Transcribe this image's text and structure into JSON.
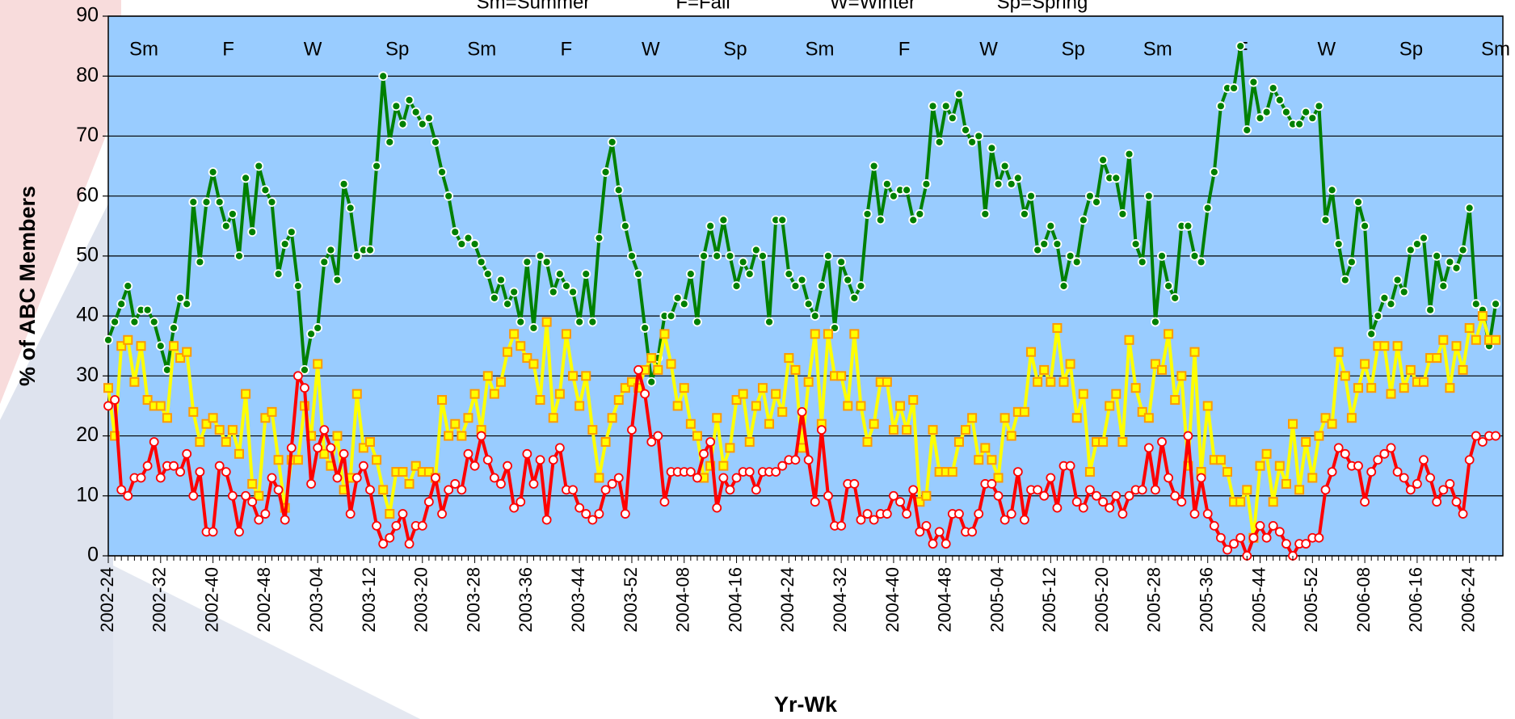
{
  "chart_data": {
    "type": "line",
    "season_key": [
      "Sm=Summer",
      "F=Fall",
      "W=Winter",
      "Sp=Spring"
    ],
    "season_labels": [
      "Sm",
      "F",
      "W",
      "Sp",
      "Sm",
      "F",
      "W",
      "Sp",
      "Sm",
      "F",
      "W",
      "Sp",
      "Sm",
      "F",
      "W",
      "Sp",
      "Sm"
    ],
    "y_label": "% of ABC Members",
    "x_label": "Yr-Wk",
    "ylim": [
      0,
      90
    ],
    "yticks": [
      0,
      10,
      20,
      30,
      40,
      50,
      60,
      70,
      80,
      90
    ],
    "grid": true,
    "plot_background": "#99ccff",
    "categories": [
      "2002-24",
      null,
      null,
      null,
      null,
      null,
      null,
      null,
      "2002-32",
      null,
      null,
      null,
      null,
      null,
      null,
      null,
      "2002-40",
      null,
      null,
      null,
      null,
      null,
      null,
      null,
      "2002-48",
      null,
      null,
      null,
      null,
      null,
      null,
      null,
      "2003-04",
      null,
      null,
      null,
      null,
      null,
      null,
      null,
      "2003-12",
      null,
      null,
      null,
      null,
      null,
      null,
      null,
      "2003-20",
      null,
      null,
      null,
      null,
      null,
      null,
      null,
      "2003-28",
      null,
      null,
      null,
      null,
      null,
      null,
      null,
      "2003-36",
      null,
      null,
      null,
      null,
      null,
      null,
      null,
      "2003-44",
      null,
      null,
      null,
      null,
      null,
      null,
      null,
      "2003-52",
      null,
      null,
      null,
      null,
      null,
      null,
      null,
      "2004-08",
      null,
      null,
      null,
      null,
      null,
      null,
      null,
      "2004-16",
      null,
      null,
      null,
      null,
      null,
      null,
      null,
      "2004-24",
      null,
      null,
      null,
      null,
      null,
      null,
      null,
      "2004-32",
      null,
      null,
      null,
      null,
      null,
      null,
      null,
      "2004-40",
      null,
      null,
      null,
      null,
      null,
      null,
      null,
      "2004-48",
      null,
      null,
      null,
      null,
      null,
      null,
      null,
      "2005-04",
      null,
      null,
      null,
      null,
      null,
      null,
      null,
      "2005-12",
      null,
      null,
      null,
      null,
      null,
      null,
      null,
      "2005-20",
      null,
      null,
      null,
      null,
      null,
      null,
      null,
      "2005-28",
      null,
      null,
      null,
      null,
      null,
      null,
      null,
      "2005-36",
      null,
      null,
      null,
      null,
      null,
      null,
      null,
      "2005-44",
      null,
      null,
      null,
      null,
      null,
      null,
      null,
      "2005-52",
      null,
      null,
      null,
      null,
      null,
      null,
      null,
      "2006-08",
      null,
      null,
      null,
      null,
      null,
      null,
      null,
      "2006-16",
      null,
      null,
      null,
      null,
      null,
      null,
      null,
      "2006-24",
      null,
      null,
      null,
      null
    ],
    "series": [
      {
        "color": "#008000",
        "marker": "circle",
        "marker_fill": "#008000",
        "marker_stroke": "#ffffff",
        "values": [
          36,
          39,
          42,
          45,
          39,
          41,
          41,
          39,
          35,
          31,
          38,
          43,
          42,
          59,
          49,
          59,
          64,
          59,
          55,
          57,
          50,
          63,
          54,
          65,
          61,
          59,
          47,
          52,
          54,
          45,
          31,
          37,
          38,
          49,
          51,
          46,
          62,
          58,
          50,
          51,
          51,
          65,
          80,
          69,
          75,
          72,
          76,
          74,
          72,
          73,
          69,
          64,
          60,
          54,
          52,
          53,
          52,
          49,
          47,
          43,
          46,
          42,
          44,
          39,
          49,
          38,
          50,
          49,
          44,
          47,
          45,
          44,
          39,
          47,
          39,
          53,
          64,
          69,
          61,
          55,
          50,
          47,
          38,
          29,
          33,
          40,
          40,
          43,
          42,
          47,
          39,
          50,
          55,
          50,
          56,
          50,
          45,
          49,
          47,
          51,
          50,
          39,
          56,
          56,
          47,
          45,
          46,
          42,
          40,
          45,
          50,
          38,
          49,
          46,
          43,
          45,
          57,
          65,
          56,
          62,
          60,
          61,
          61,
          56,
          57,
          62,
          75,
          69,
          75,
          73,
          77,
          71,
          69,
          70,
          57,
          68,
          62,
          65,
          62,
          63,
          57,
          60,
          51,
          52,
          55,
          52,
          45,
          50,
          49,
          56,
          60,
          59,
          66,
          63,
          63,
          57,
          67,
          52,
          49,
          60,
          39,
          50,
          45,
          43,
          55,
          55,
          50,
          49,
          58,
          64,
          75,
          78,
          78,
          85,
          71,
          79,
          73,
          74,
          78,
          76,
          74,
          72,
          72,
          74,
          73,
          75,
          56,
          61,
          52,
          46,
          49,
          59,
          55,
          37,
          40,
          43,
          42,
          46,
          44,
          51,
          52,
          53,
          41,
          50,
          45,
          49,
          48,
          51,
          58,
          42,
          41,
          35,
          42
        ]
      },
      {
        "color": "#ffff00",
        "marker": "square",
        "marker_fill": "#ffff00",
        "marker_stroke": "#ff9900",
        "values": [
          28,
          20,
          35,
          36,
          29,
          35,
          26,
          25,
          25,
          23,
          35,
          33,
          34,
          24,
          19,
          22,
          23,
          21,
          19,
          21,
          17,
          27,
          12,
          10,
          23,
          24,
          16,
          8,
          16,
          16,
          25,
          20,
          32,
          17,
          15,
          20,
          11,
          13,
          27,
          18,
          19,
          16,
          11,
          7,
          14,
          14,
          12,
          15,
          14,
          14,
          13,
          26,
          20,
          22,
          20,
          23,
          27,
          21,
          30,
          27,
          29,
          34,
          37,
          35,
          33,
          32,
          26,
          39,
          23,
          27,
          37,
          30,
          25,
          30,
          21,
          13,
          19,
          23,
          26,
          28,
          29,
          28,
          31,
          33,
          31,
          37,
          32,
          25,
          28,
          22,
          20,
          13,
          15,
          23,
          15,
          18,
          26,
          27,
          19,
          25,
          28,
          22,
          27,
          24,
          33,
          31,
          18,
          29,
          37,
          22,
          37,
          30,
          30,
          25,
          37,
          25,
          19,
          22,
          29,
          29,
          21,
          25,
          21,
          26,
          9,
          10,
          21,
          14,
          14,
          14,
          19,
          21,
          23,
          16,
          18,
          16,
          13,
          23,
          20,
          24,
          24,
          34,
          29,
          31,
          29,
          38,
          29,
          32,
          23,
          27,
          14,
          19,
          19,
          25,
          27,
          19,
          36,
          28,
          24,
          23,
          32,
          31,
          37,
          26,
          30,
          15,
          34,
          14,
          25,
          16,
          16,
          14,
          9,
          9,
          11,
          3,
          15,
          17,
          9,
          15,
          12,
          22,
          11,
          19,
          13,
          20,
          23,
          22,
          34,
          30,
          23,
          28,
          32,
          28,
          35,
          35,
          27,
          35,
          28,
          31,
          29,
          29,
          33,
          33,
          36,
          28,
          35,
          31,
          38,
          36,
          40,
          36,
          36
        ]
      },
      {
        "color": "#ff0000",
        "marker": "circle",
        "marker_fill": "#ffffff",
        "marker_stroke": "#ff0000",
        "values": [
          25,
          26,
          11,
          10,
          13,
          13,
          15,
          19,
          13,
          15,
          15,
          14,
          17,
          10,
          14,
          4,
          4,
          15,
          14,
          10,
          4,
          10,
          9,
          6,
          7,
          13,
          11,
          6,
          18,
          30,
          28,
          12,
          18,
          21,
          18,
          13,
          17,
          7,
          13,
          15,
          11,
          5,
          2,
          3,
          5,
          7,
          2,
          5,
          5,
          9,
          13,
          7,
          11,
          12,
          11,
          17,
          15,
          20,
          16,
          13,
          12,
          15,
          8,
          9,
          17,
          12,
          16,
          6,
          16,
          18,
          11,
          11,
          8,
          7,
          6,
          7,
          11,
          12,
          13,
          7,
          21,
          31,
          27,
          19,
          20,
          9,
          14,
          14,
          14,
          14,
          13,
          17,
          19,
          8,
          13,
          11,
          13,
          14,
          14,
          11,
          14,
          14,
          14,
          15,
          16,
          16,
          24,
          16,
          9,
          21,
          10,
          5,
          5,
          12,
          12,
          6,
          7,
          6,
          7,
          7,
          10,
          9,
          7,
          11,
          4,
          5,
          2,
          4,
          2,
          7,
          7,
          4,
          4,
          7,
          12,
          12,
          10,
          6,
          7,
          14,
          6,
          11,
          11,
          10,
          13,
          8,
          15,
          15,
          9,
          8,
          11,
          10,
          9,
          8,
          10,
          7,
          10,
          11,
          11,
          18,
          11,
          19,
          13,
          10,
          9,
          20,
          7,
          13,
          7,
          5,
          3,
          1,
          2,
          3,
          0,
          3,
          5,
          3,
          5,
          4,
          2,
          0,
          2,
          2,
          3,
          3,
          11,
          14,
          18,
          17,
          15,
          15,
          9,
          14,
          16,
          17,
          18,
          14,
          13,
          11,
          12,
          16,
          13,
          9,
          11,
          12,
          9,
          7,
          16,
          20,
          19,
          20,
          20
        ]
      }
    ]
  }
}
